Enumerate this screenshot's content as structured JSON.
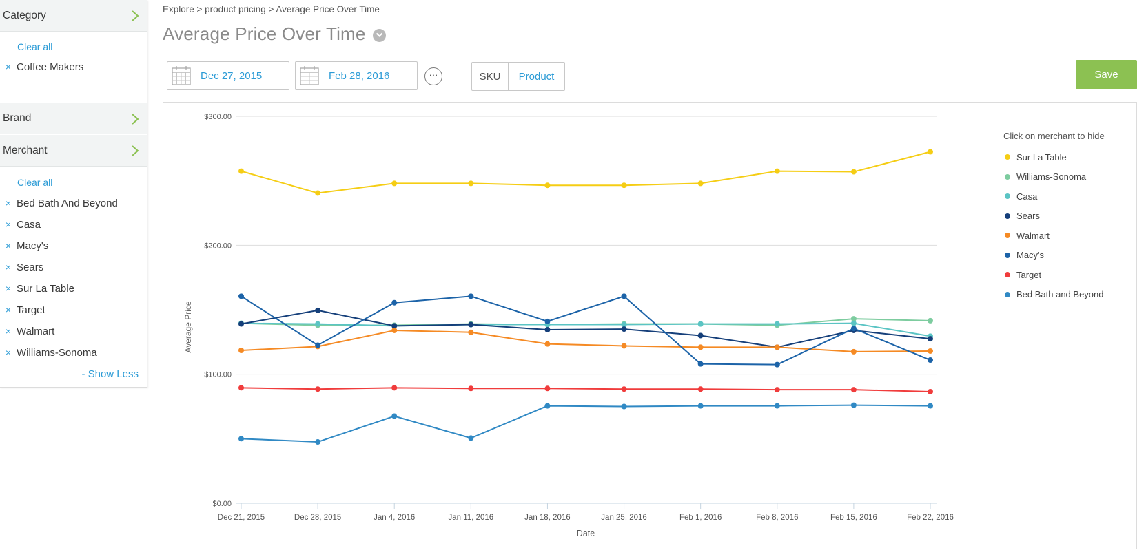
{
  "sidebar": {
    "category": {
      "title": "Category",
      "clear_all": "Clear all",
      "items": [
        "Coffee Makers"
      ]
    },
    "brand": {
      "title": "Brand"
    },
    "merchant": {
      "title": "Merchant",
      "clear_all": "Clear all",
      "items": [
        "Bed Bath And Beyond",
        "Casa",
        "Macy's",
        "Sears",
        "Sur La Table",
        "Target",
        "Walmart",
        "Williams-Sonoma"
      ],
      "show_less": "- Show Less"
    },
    "remove_glyph": "×"
  },
  "header": {
    "breadcrumb": "Explore > product pricing > Average Price Over Time",
    "title": "Average Price Over Time"
  },
  "controls": {
    "start_date": "Dec 27, 2015",
    "end_date": "Feb 28, 2016",
    "more_glyph": "···",
    "toggle": {
      "sku": "SKU",
      "product": "Product"
    },
    "save": "Save"
  },
  "colors": {
    "accent": "#2b9bd6",
    "save_green": "#8cc152"
  },
  "legend": {
    "title": "Click on merchant to hide"
  },
  "chart_data": {
    "type": "line",
    "xlabel": "Date",
    "ylabel": "Average Price",
    "ylim": [
      0,
      300
    ],
    "y_ticks": [
      "$0.00",
      "$100.00",
      "$200.00",
      "$300.00"
    ],
    "grid": true,
    "legend_position": "right",
    "categories": [
      "Dec 21, 2015",
      "Dec 28, 2015",
      "Jan 4, 2016",
      "Jan 11, 2016",
      "Jan 18, 2016",
      "Jan 25, 2016",
      "Feb 1, 2016",
      "Feb 8, 2016",
      "Feb 15, 2016",
      "Feb 22, 2016"
    ],
    "series": [
      {
        "name": "Sur La Table",
        "color": "#f5cd14",
        "values": [
          257.5,
          240.5,
          248,
          248,
          246.5,
          246.5,
          248,
          257.5,
          257,
          272.5
        ]
      },
      {
        "name": "Williams-Sonoma",
        "color": "#7dcc9f",
        "values": [
          139.5,
          138,
          138,
          139,
          138.5,
          139,
          139,
          138,
          143,
          141.5
        ]
      },
      {
        "name": "Casa",
        "color": "#5bc4c4",
        "values": [
          139.5,
          139,
          137.5,
          138.5,
          138.5,
          138.5,
          139,
          139,
          139.5,
          129.5
        ]
      },
      {
        "name": "Sears",
        "color": "#153f7a",
        "values": [
          139,
          149.5,
          137.5,
          138.5,
          134.5,
          135,
          130,
          121,
          134,
          127.5
        ]
      },
      {
        "name": "Walmart",
        "color": "#f58a24",
        "values": [
          118.5,
          121.5,
          134,
          132.5,
          123.5,
          122,
          121,
          121,
          117.5,
          118
        ]
      },
      {
        "name": "Macy's",
        "color": "#1c63a8",
        "values": [
          160.5,
          122.5,
          155.5,
          160.5,
          141,
          160.5,
          108,
          107.5,
          135.5,
          111
        ]
      },
      {
        "name": "Target",
        "color": "#f03c3c",
        "values": [
          89.5,
          88.5,
          89.5,
          89,
          89,
          88.5,
          88.5,
          88,
          88,
          86.5
        ]
      },
      {
        "name": "Bed Bath and Beyond",
        "color": "#3089c4",
        "values": [
          50,
          47.5,
          67.5,
          50.5,
          75.5,
          75,
          75.5,
          75.5,
          76,
          75.5
        ]
      }
    ]
  }
}
